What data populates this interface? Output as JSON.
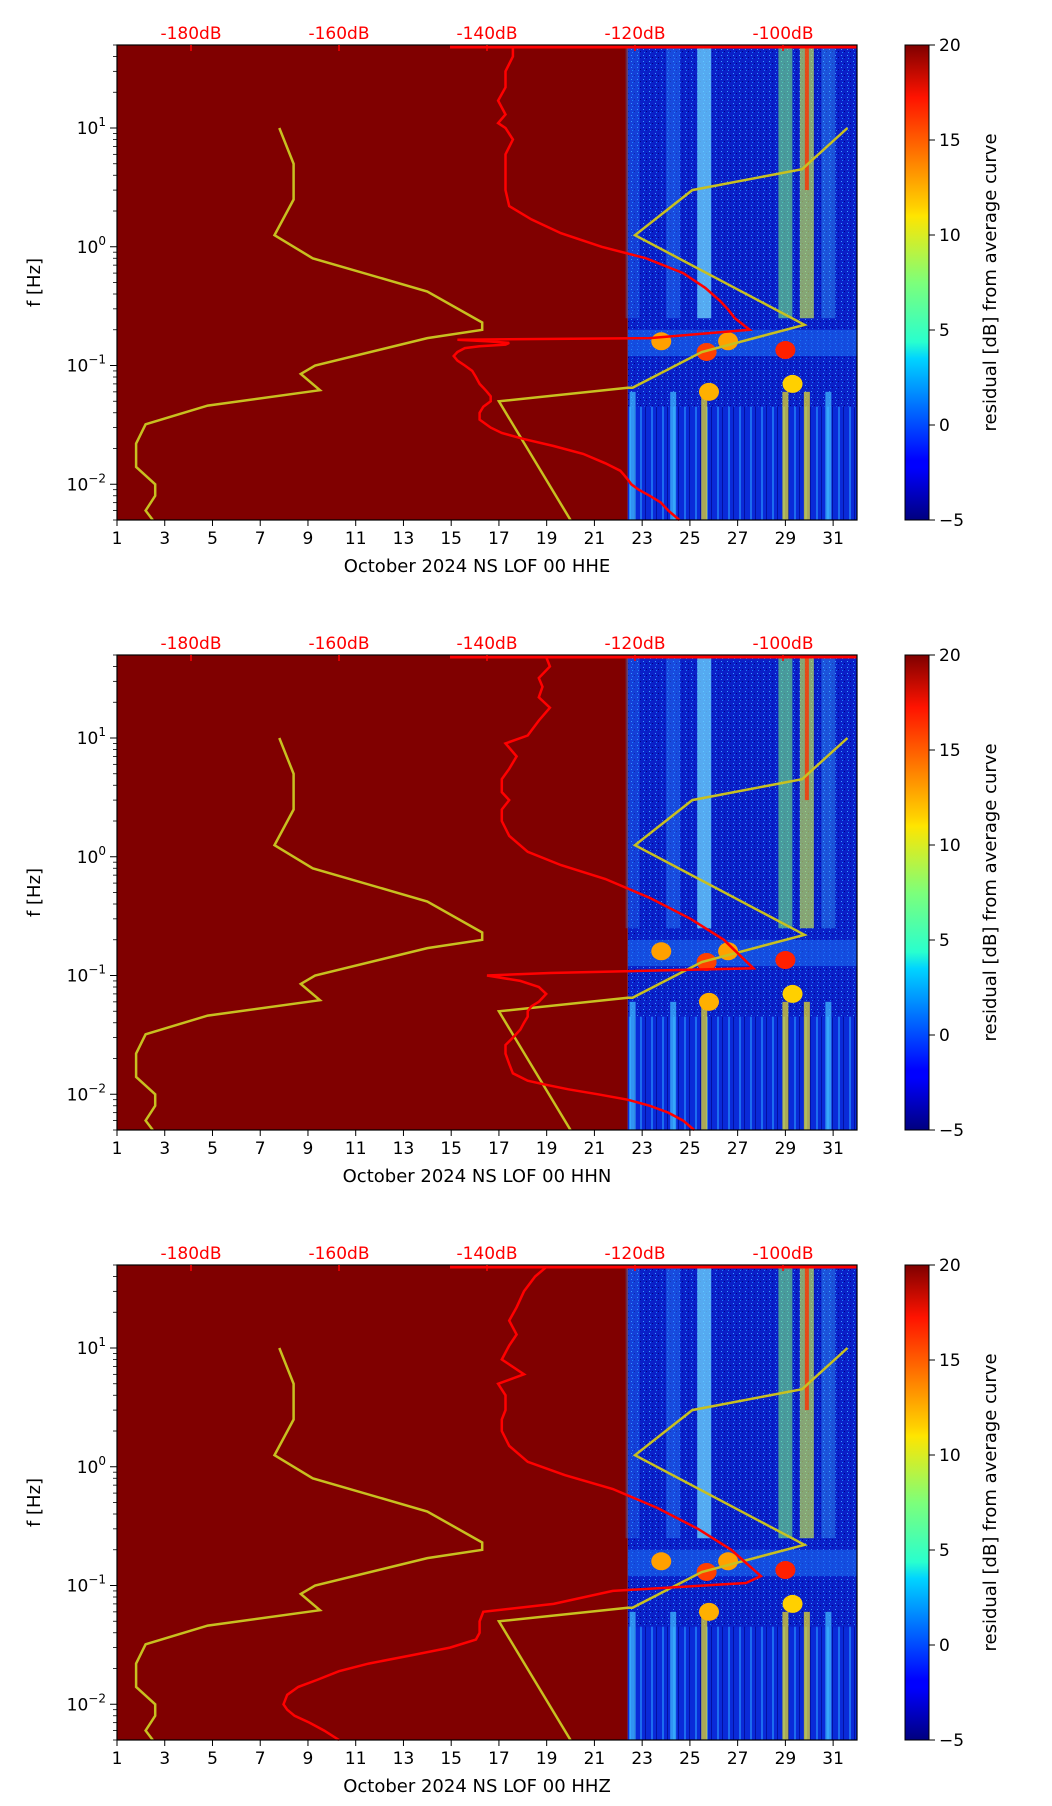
{
  "colors": {
    "background_fill": "#800000",
    "red_curve": "#ff0000",
    "yellow_curve": "#c8c020",
    "top_tick_color": "#ff0000"
  },
  "chart_data": [
    {
      "type": "heatmap",
      "title": "",
      "xlabel": "October 2024 NS LOF 00 HHE",
      "ylabel": "f [Hz]",
      "xlim": [
        1,
        32
      ],
      "ylim": [
        0.005,
        50
      ],
      "y_scale": "log",
      "x_ticks": [
        "1",
        "3",
        "5",
        "7",
        "9",
        "11",
        "13",
        "15",
        "17",
        "19",
        "21",
        "23",
        "25",
        "27",
        "29",
        "31"
      ],
      "y_ticks": [
        {
          "value": 0.01,
          "base": "10",
          "exp": "−2"
        },
        {
          "value": 0.1,
          "base": "10",
          "exp": "−1"
        },
        {
          "value": 1,
          "base": "10",
          "exp": "0"
        },
        {
          "value": 10,
          "base": "10",
          "exp": "1"
        }
      ],
      "top_axis_ticks": [
        {
          "label": "-180dB",
          "value": -180
        },
        {
          "label": "-160dB",
          "value": -160
        },
        {
          "label": "-140dB",
          "value": -140
        },
        {
          "label": "-120dB",
          "value": -120
        },
        {
          "label": "-100dB",
          "value": -100
        }
      ],
      "top_axis_range": [
        -190,
        -90
      ],
      "data_start_day": 22.4,
      "colorbar": {
        "label": "residual [dB] from average curve",
        "range": [
          -5,
          20
        ],
        "ticks": [
          "−5",
          "0",
          "5",
          "10",
          "15",
          "20"
        ]
      },
      "red_curve": {
        "db": [
          -114,
          -115.5,
          -116.5,
          -118,
          -119.5,
          -120.5,
          -121,
          -121.5,
          -122,
          -124,
          -127,
          -131,
          -135,
          -138,
          -139.5,
          -141,
          -141,
          -140.5,
          -139.5,
          -139.5,
          -140,
          -140.5,
          -141,
          -141.5,
          -142,
          -143,
          -144,
          -144.5,
          -144,
          -143,
          -141,
          -137.5,
          -137,
          -140,
          -144,
          -118,
          -104.5,
          -106.5,
          -107.5,
          -108.5,
          -110.5,
          -113.5,
          -118.5,
          -124.5,
          -130,
          -134,
          -137,
          -137.5,
          -137.5,
          -137.5,
          -137.5,
          -136.5,
          -137.5,
          -138.5,
          -137.5,
          -138.5,
          -137.5,
          -137.5,
          -136.5,
          -136.5
        ],
        "f": [
          0.005,
          0.006,
          0.007,
          0.008,
          0.009,
          0.01,
          0.011,
          0.012,
          0.013,
          0.015,
          0.018,
          0.021,
          0.024,
          0.027,
          0.03,
          0.035,
          0.04,
          0.045,
          0.05,
          0.055,
          0.06,
          0.065,
          0.07,
          0.08,
          0.09,
          0.1,
          0.11,
          0.12,
          0.13,
          0.14,
          0.145,
          0.15,
          0.155,
          0.16,
          0.165,
          0.17,
          0.2,
          0.25,
          0.3,
          0.35,
          0.45,
          0.6,
          0.8,
          1,
          1.3,
          1.7,
          2.2,
          3,
          4,
          5,
          6,
          8,
          10,
          11,
          13,
          17,
          22,
          30,
          40,
          48
        ]
      },
      "yellow_curve": {
        "days": [
          2.5,
          2.2,
          2.6,
          2.6,
          1.8,
          1.8,
          2.2,
          4.8,
          9.5,
          8.7,
          9.3,
          14.0,
          16.3,
          16.3,
          14.0,
          9.2,
          7.6,
          8.4,
          8.4,
          7.8,
          20.0,
          17.0,
          22.4,
          22.6,
          25.5,
          29.8,
          22.7,
          25.1,
          29.7,
          31.6
        ],
        "f": [
          0.005,
          0.006,
          0.008,
          0.01,
          0.014,
          0.022,
          0.032,
          0.046,
          0.062,
          0.085,
          0.1,
          0.17,
          0.2,
          0.23,
          0.42,
          0.8,
          1.25,
          2.5,
          5,
          10,
          0.005,
          0.05,
          0.065,
          0.065,
          0.13,
          0.22,
          1.25,
          3.0,
          4.5,
          10
        ]
      }
    },
    {
      "type": "heatmap",
      "title": "",
      "xlabel": "October 2024 NS LOF 00 HHN",
      "ylabel": "f [Hz]",
      "xlim": [
        1,
        32
      ],
      "ylim": [
        0.005,
        50
      ],
      "y_scale": "log",
      "x_ticks": [
        "1",
        "3",
        "5",
        "7",
        "9",
        "11",
        "13",
        "15",
        "17",
        "19",
        "21",
        "23",
        "25",
        "27",
        "29",
        "31"
      ],
      "y_ticks": [
        {
          "value": 0.01,
          "base": "10",
          "exp": "−2"
        },
        {
          "value": 0.1,
          "base": "10",
          "exp": "−1"
        },
        {
          "value": 1,
          "base": "10",
          "exp": "0"
        },
        {
          "value": 10,
          "base": "10",
          "exp": "1"
        }
      ],
      "top_axis_ticks": [
        {
          "label": "-180dB",
          "value": -180
        },
        {
          "label": "-160dB",
          "value": -160
        },
        {
          "label": "-140dB",
          "value": -140
        },
        {
          "label": "-120dB",
          "value": -120
        },
        {
          "label": "-100dB",
          "value": -100
        }
      ],
      "top_axis_range": [
        -190,
        -90
      ],
      "data_start_day": 22.4,
      "colorbar": {
        "label": "residual [dB] from average curve",
        "range": [
          -5,
          20
        ],
        "ticks": [
          "−5",
          "0",
          "5",
          "10",
          "15",
          "20"
        ]
      },
      "red_curve": {
        "db": [
          -112,
          -113.5,
          -115.5,
          -118,
          -121,
          -125,
          -129,
          -132,
          -134.5,
          -136.5,
          -137,
          -137.5,
          -137.5,
          -136.5,
          -135.5,
          -135,
          -134.5,
          -134.5,
          -134,
          -133,
          -132,
          -133,
          -135.5,
          -140,
          -131.5,
          -104,
          -108,
          -112.5,
          -118,
          -124,
          -130,
          -134.5,
          -137,
          -138,
          -138,
          -137,
          -138,
          -138,
          -137,
          -136,
          -137.5,
          -134.5,
          -133,
          -131.5,
          -133,
          -132.5,
          -133,
          -131.5,
          -132
        ],
        "f": [
          0.005,
          0.006,
          0.007,
          0.008,
          0.009,
          0.01,
          0.011,
          0.012,
          0.013,
          0.015,
          0.018,
          0.022,
          0.026,
          0.03,
          0.035,
          0.04,
          0.045,
          0.05,
          0.055,
          0.06,
          0.07,
          0.08,
          0.09,
          0.1,
          0.105,
          0.115,
          0.2,
          0.3,
          0.45,
          0.65,
          0.85,
          1.1,
          1.5,
          2.0,
          2.5,
          3.0,
          3.5,
          4.5,
          5.5,
          7,
          9,
          10.5,
          14,
          18,
          22,
          27,
          32,
          40,
          48
        ]
      },
      "yellow_curve": {
        "days": [
          2.5,
          2.2,
          2.6,
          2.6,
          1.8,
          1.8,
          2.2,
          4.8,
          9.5,
          8.7,
          9.3,
          14.0,
          16.3,
          16.3,
          14.0,
          9.2,
          7.6,
          8.4,
          8.4,
          7.8,
          20.0,
          17.0,
          22.4,
          22.6,
          25.5,
          29.8,
          22.7,
          25.1,
          29.7,
          31.6
        ],
        "f": [
          0.005,
          0.006,
          0.008,
          0.01,
          0.014,
          0.022,
          0.032,
          0.046,
          0.062,
          0.085,
          0.1,
          0.17,
          0.2,
          0.23,
          0.42,
          0.8,
          1.25,
          2.5,
          5,
          10,
          0.005,
          0.05,
          0.065,
          0.065,
          0.13,
          0.22,
          1.25,
          3.0,
          4.5,
          10
        ]
      }
    },
    {
      "type": "heatmap",
      "title": "",
      "xlabel": "October 2024 NS LOF 00 HHZ",
      "ylabel": "f [Hz]",
      "xlim": [
        1,
        32
      ],
      "ylim": [
        0.005,
        50
      ],
      "y_scale": "log",
      "x_ticks": [
        "1",
        "3",
        "5",
        "7",
        "9",
        "11",
        "13",
        "15",
        "17",
        "19",
        "21",
        "23",
        "25",
        "27",
        "29",
        "31"
      ],
      "y_ticks": [
        {
          "value": 0.01,
          "base": "10",
          "exp": "−2"
        },
        {
          "value": 0.1,
          "base": "10",
          "exp": "−1"
        },
        {
          "value": 1,
          "base": "10",
          "exp": "0"
        },
        {
          "value": 10,
          "base": "10",
          "exp": "1"
        }
      ],
      "top_axis_ticks": [
        {
          "label": "-180dB",
          "value": -180
        },
        {
          "label": "-160dB",
          "value": -160
        },
        {
          "label": "-140dB",
          "value": -140
        },
        {
          "label": "-120dB",
          "value": -120
        },
        {
          "label": "-100dB",
          "value": -100
        }
      ],
      "top_axis_range": [
        -190,
        -90
      ],
      "data_start_day": 22.4,
      "colorbar": {
        "label": "residual [dB] from average curve",
        "range": [
          -5,
          20
        ],
        "ticks": [
          "−5",
          "0",
          "5",
          "10",
          "15",
          "20"
        ]
      },
      "red_curve": {
        "db": [
          -160,
          -162,
          -164,
          -166,
          -167,
          -167.5,
          -167,
          -165.5,
          -163,
          -160,
          -156,
          -150,
          -145,
          -141.5,
          -141,
          -141,
          -140.5,
          -131,
          -123,
          -105,
          -103,
          -107,
          -111.5,
          -117,
          -123,
          -129.5,
          -134.5,
          -137,
          -138,
          -138,
          -137.5,
          -137.5,
          -138.5,
          -135,
          -138,
          -137,
          -136,
          -137,
          -136,
          -135,
          -133.5,
          -132
        ],
        "f": [
          0.005,
          0.006,
          0.007,
          0.008,
          0.009,
          0.01,
          0.012,
          0.014,
          0.016,
          0.019,
          0.022,
          0.026,
          0.03,
          0.035,
          0.04,
          0.05,
          0.06,
          0.07,
          0.09,
          0.105,
          0.12,
          0.2,
          0.3,
          0.45,
          0.65,
          0.85,
          1.1,
          1.5,
          2.0,
          2.5,
          3.0,
          4.0,
          5.0,
          6.0,
          8.0,
          10.5,
          13,
          17,
          22,
          30,
          40,
          48
        ]
      },
      "yellow_curve": {
        "days": [
          2.5,
          2.2,
          2.6,
          2.6,
          1.8,
          1.8,
          2.2,
          4.8,
          9.5,
          8.7,
          9.3,
          14.0,
          16.3,
          16.3,
          14.0,
          9.2,
          7.6,
          8.4,
          8.4,
          7.8,
          20.0,
          17.0,
          22.4,
          22.6,
          25.5,
          29.8,
          22.7,
          25.1,
          29.7,
          31.6
        ],
        "f": [
          0.005,
          0.006,
          0.008,
          0.01,
          0.014,
          0.022,
          0.032,
          0.046,
          0.062,
          0.085,
          0.1,
          0.17,
          0.2,
          0.23,
          0.42,
          0.8,
          1.25,
          2.5,
          5,
          10,
          0.005,
          0.05,
          0.065,
          0.065,
          0.13,
          0.22,
          1.25,
          3.0,
          4.5,
          10
        ]
      }
    }
  ]
}
